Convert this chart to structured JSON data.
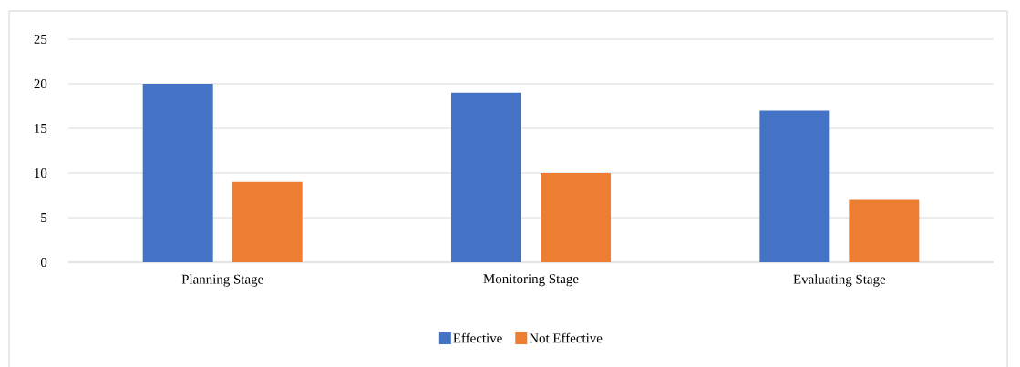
{
  "chart_data": {
    "type": "bar",
    "categories": [
      "Planning Stage",
      "Monitoring Stage",
      "Evaluating Stage"
    ],
    "series": [
      {
        "name": "Effective",
        "color": "#4472c4",
        "values": [
          20,
          19,
          17
        ]
      },
      {
        "name": "Not Effective",
        "color": "#ed7d31",
        "values": [
          9,
          10,
          7
        ]
      }
    ],
    "ylim": [
      0,
      25
    ],
    "yticks": [
      0,
      5,
      10,
      15,
      20,
      25
    ],
    "grid": "y",
    "legend": "bottom"
  }
}
